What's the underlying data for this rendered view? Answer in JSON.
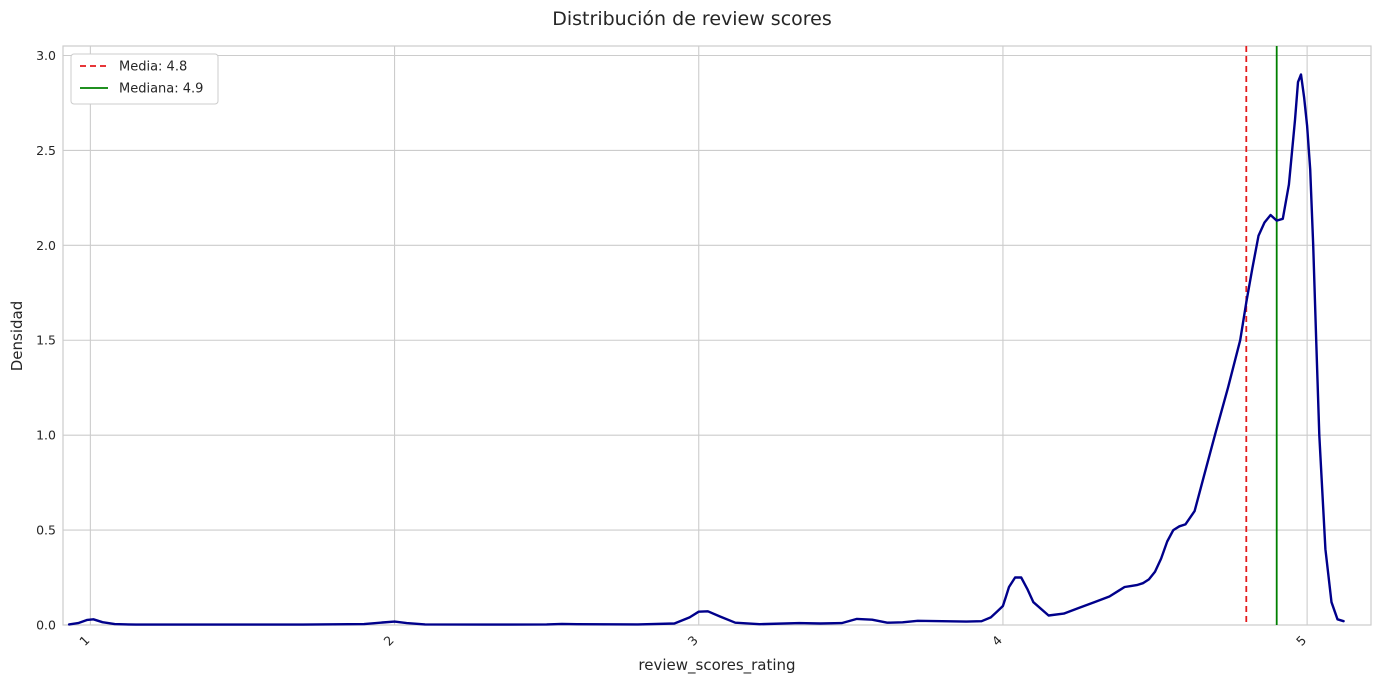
{
  "chart_data": {
    "type": "line",
    "title": "Distribución de review scores",
    "xlabel": "review_scores_rating",
    "ylabel": "Densidad",
    "xlim": [
      0.91,
      5.21
    ],
    "ylim": [
      0,
      3.05
    ],
    "xticks": [
      {
        "value": 1,
        "label": "1"
      },
      {
        "value": 2,
        "label": "2"
      },
      {
        "value": 3,
        "label": "3"
      },
      {
        "value": 4,
        "label": "4"
      },
      {
        "value": 5,
        "label": "5"
      }
    ],
    "yticks": [
      {
        "value": 0.0,
        "label": "0.0"
      },
      {
        "value": 0.5,
        "label": "0.5"
      },
      {
        "value": 1.0,
        "label": "1.0"
      },
      {
        "value": 1.5,
        "label": "1.5"
      },
      {
        "value": 2.0,
        "label": "2.0"
      },
      {
        "value": 2.5,
        "label": "2.5"
      },
      {
        "value": 3.0,
        "label": "3.0"
      }
    ],
    "grid": true,
    "legend_position": "top-left",
    "density_curve": {
      "color": "#00008b",
      "x": [
        0.93,
        0.96,
        0.99,
        1.01,
        1.04,
        1.08,
        1.15,
        1.3,
        1.5,
        1.7,
        1.9,
        1.96,
        2.0,
        2.04,
        2.1,
        2.3,
        2.5,
        2.55,
        2.6,
        2.8,
        2.92,
        2.97,
        3.0,
        3.03,
        3.07,
        3.12,
        3.2,
        3.33,
        3.4,
        3.47,
        3.52,
        3.57,
        3.62,
        3.67,
        3.72,
        3.8,
        3.88,
        3.93,
        3.96,
        3.98,
        4.0,
        4.01,
        4.02,
        4.04,
        4.06,
        4.08,
        4.1,
        4.15,
        4.2,
        4.25,
        4.3,
        4.35,
        4.38,
        4.4,
        4.42,
        4.44,
        4.46,
        4.48,
        4.5,
        4.52,
        4.54,
        4.56,
        4.58,
        4.6,
        4.63,
        4.66,
        4.7,
        4.74,
        4.78,
        4.8,
        4.82,
        4.84,
        4.86,
        4.88,
        4.9,
        4.92,
        4.94,
        4.96,
        4.97,
        4.98,
        4.99,
        5.0,
        5.01,
        5.02,
        5.03,
        5.04,
        5.06,
        5.08,
        5.1,
        5.12
      ],
      "y": [
        0.003,
        0.01,
        0.027,
        0.03,
        0.015,
        0.005,
        0.002,
        0.002,
        0.002,
        0.002,
        0.005,
        0.013,
        0.018,
        0.01,
        0.003,
        0.002,
        0.003,
        0.006,
        0.004,
        0.003,
        0.008,
        0.04,
        0.07,
        0.072,
        0.045,
        0.012,
        0.004,
        0.01,
        0.008,
        0.01,
        0.032,
        0.028,
        0.012,
        0.014,
        0.022,
        0.02,
        0.018,
        0.02,
        0.04,
        0.07,
        0.1,
        0.15,
        0.2,
        0.25,
        0.25,
        0.19,
        0.12,
        0.05,
        0.06,
        0.09,
        0.12,
        0.15,
        0.18,
        0.2,
        0.205,
        0.21,
        0.22,
        0.24,
        0.28,
        0.35,
        0.44,
        0.5,
        0.52,
        0.53,
        0.6,
        0.78,
        1.02,
        1.25,
        1.5,
        1.7,
        1.88,
        2.05,
        2.12,
        2.16,
        2.13,
        2.14,
        2.32,
        2.66,
        2.86,
        2.9,
        2.78,
        2.63,
        2.4,
        2.0,
        1.5,
        1.0,
        0.4,
        0.12,
        0.03,
        0.02
      ]
    },
    "reference_lines": [
      {
        "label": "Media: 4.8",
        "value": 4.8,
        "color": "#e41a1c",
        "style": "dashed"
      },
      {
        "label": "Mediana: 4.9",
        "value": 4.9,
        "color": "#008000",
        "style": "solid"
      }
    ]
  }
}
